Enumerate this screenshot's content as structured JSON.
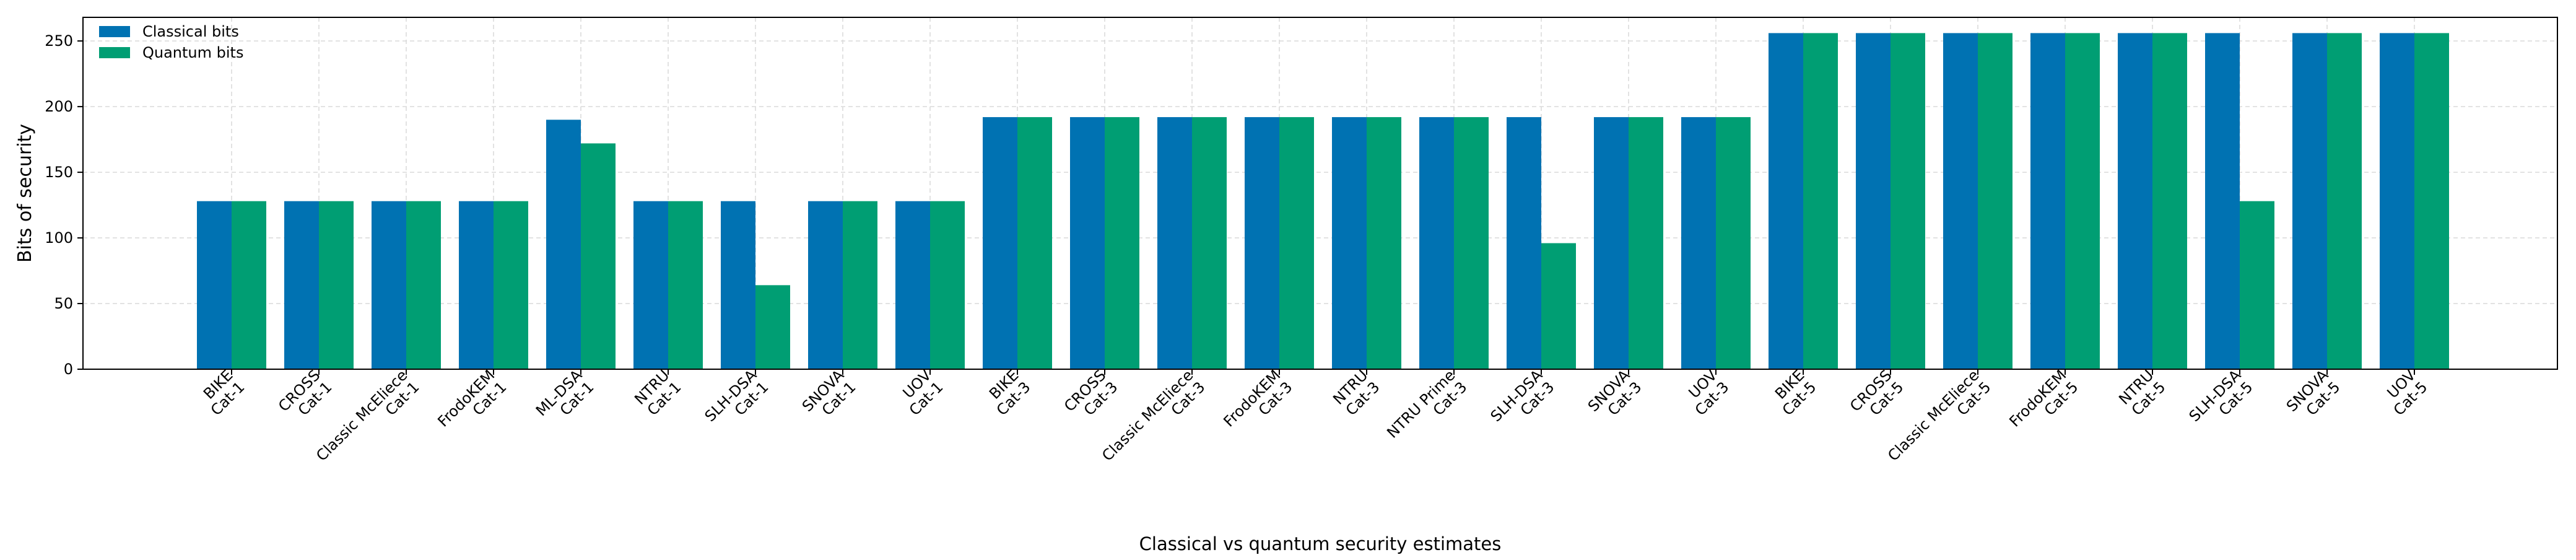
{
  "chart_data": {
    "type": "bar",
    "title": "",
    "xlabel": "Classical vs quantum security estimates",
    "ylabel": "Bits of security",
    "ylim": [
      0,
      268
    ],
    "yticks": [
      0,
      50,
      100,
      150,
      200,
      250
    ],
    "grid": true,
    "legend_position": "top-left",
    "categories": [
      [
        "BIKE",
        "Cat-1"
      ],
      [
        "CROSS",
        "Cat-1"
      ],
      [
        "Classic McEliece",
        "Cat-1"
      ],
      [
        "FrodoKEM",
        "Cat-1"
      ],
      [
        "ML-DSA",
        "Cat-1"
      ],
      [
        "NTRU",
        "Cat-1"
      ],
      [
        "SLH-DSA",
        "Cat-1"
      ],
      [
        "SNOVA",
        "Cat-1"
      ],
      [
        "UOV",
        "Cat-1"
      ],
      [
        "BIKE",
        "Cat-3"
      ],
      [
        "CROSS",
        "Cat-3"
      ],
      [
        "Classic McEliece",
        "Cat-3"
      ],
      [
        "FrodoKEM",
        "Cat-3"
      ],
      [
        "NTRU",
        "Cat-3"
      ],
      [
        "NTRU Prime",
        "Cat-3"
      ],
      [
        "SLH-DSA",
        "Cat-3"
      ],
      [
        "SNOVA",
        "Cat-3"
      ],
      [
        "UOV",
        "Cat-3"
      ],
      [
        "BIKE",
        "Cat-5"
      ],
      [
        "CROSS",
        "Cat-5"
      ],
      [
        "Classic McEliece",
        "Cat-5"
      ],
      [
        "FrodoKEM",
        "Cat-5"
      ],
      [
        "NTRU",
        "Cat-5"
      ],
      [
        "SLH-DSA",
        "Cat-5"
      ],
      [
        "SNOVA",
        "Cat-5"
      ],
      [
        "UOV",
        "Cat-5"
      ]
    ],
    "series": [
      {
        "name": "Classical bits",
        "color": "#0072B2",
        "values": [
          128,
          128,
          128,
          128,
          190,
          128,
          128,
          128,
          128,
          192,
          192,
          192,
          192,
          192,
          192,
          192,
          192,
          192,
          256,
          256,
          256,
          256,
          256,
          256,
          256,
          256
        ]
      },
      {
        "name": "Quantum bits",
        "color": "#009E73",
        "values": [
          128,
          128,
          128,
          128,
          172,
          128,
          64,
          128,
          128,
          192,
          192,
          192,
          192,
          192,
          192,
          96,
          192,
          192,
          256,
          256,
          256,
          256,
          256,
          128,
          256,
          256
        ]
      }
    ]
  }
}
